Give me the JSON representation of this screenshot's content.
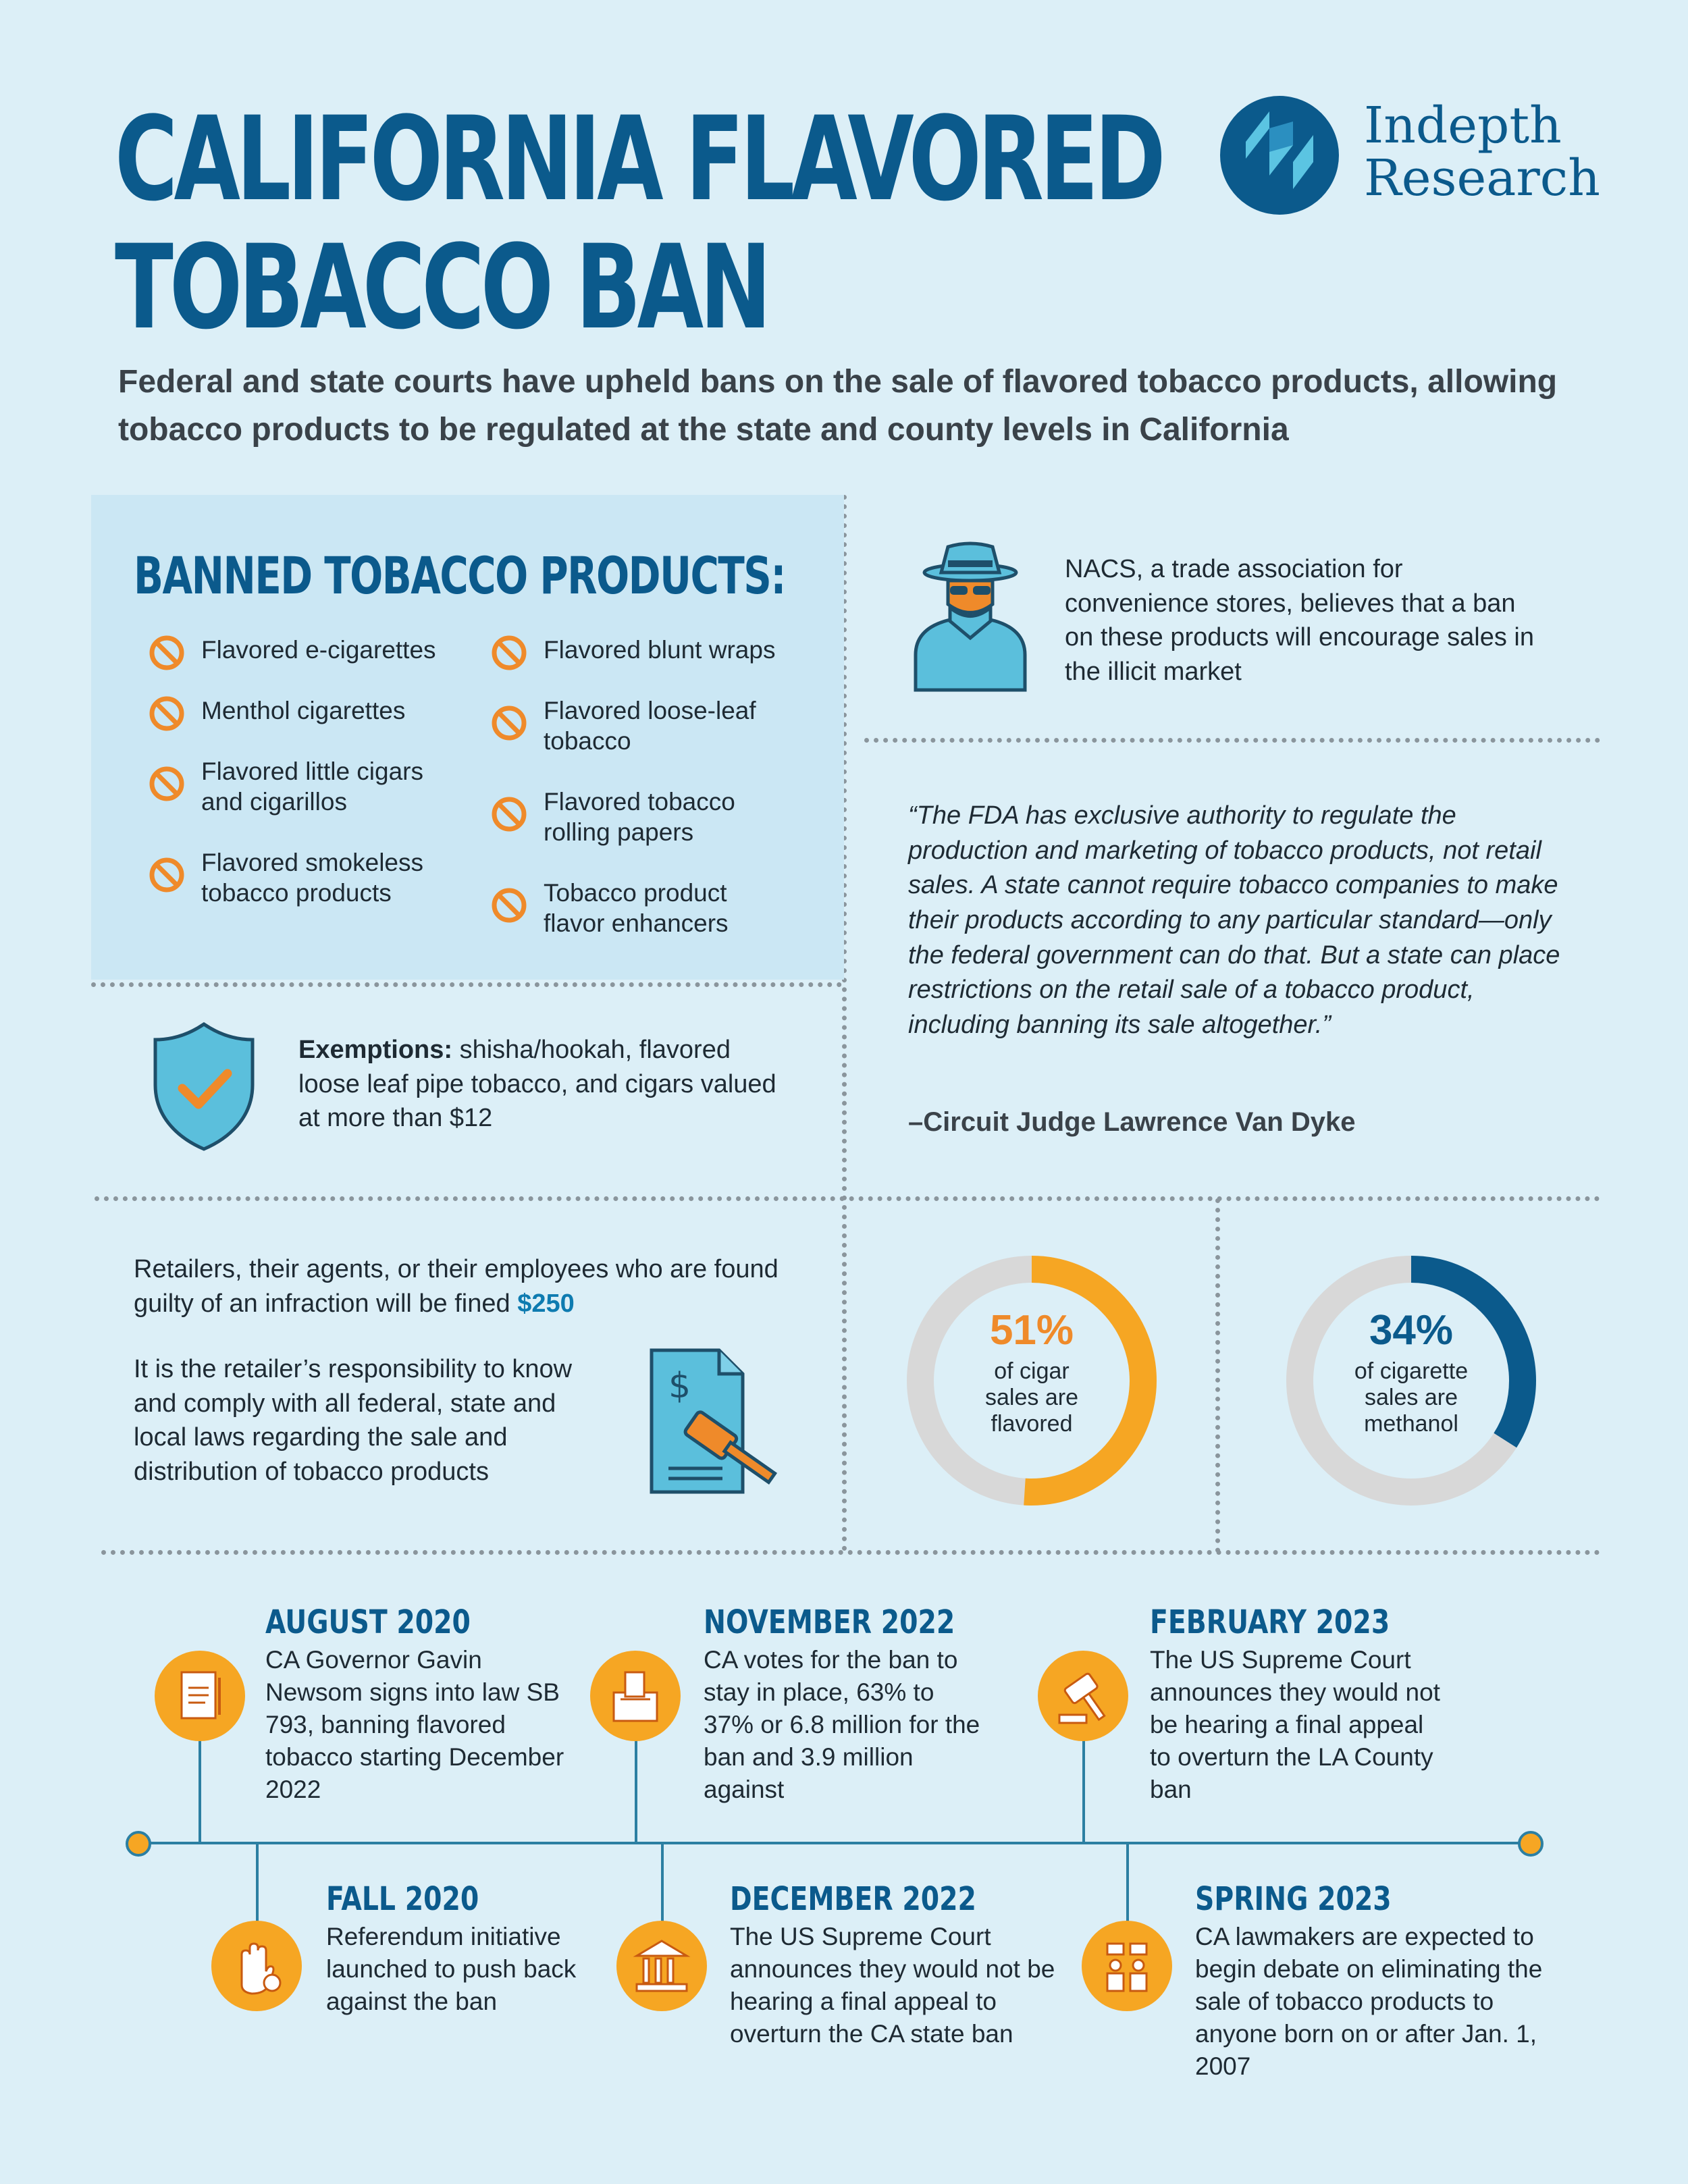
{
  "header": {
    "title_line1": "CALIFORNIA FLAVORED",
    "title_line2": "TOBACCO BAN",
    "subtitle": "Federal and state courts have upheld bans on the sale of flavored tobacco products, allowing tobacco products to be regulated at the state and county levels in California",
    "logo_line1": "Indepth",
    "logo_line2": "Research"
  },
  "banned": {
    "heading": "BANNED TOBACCO PRODUCTS:",
    "left_items": [
      "Flavored e-cigarettes",
      "Menthol cigarettes",
      "Flavored little cigars and cigarillos",
      "Flavored smokeless tobacco products"
    ],
    "right_items": [
      "Flavored blunt wraps",
      "Flavored loose-leaf tobacco",
      "Flavored tobacco rolling papers",
      "Tobacco product flavor enhancers"
    ]
  },
  "exemptions": {
    "label": "Exemptions:",
    "text": " shisha/hookah, flavored loose leaf pipe tobacco, and cigars valued at more than $12"
  },
  "nacs": {
    "text": "NACS, a trade association for convenience stores, believes that a ban on these products will encourage sales in the illicit market"
  },
  "quote": {
    "text": "“The FDA has exclusive authority to regulate the production and marketing of tobacco products, not retail sales. A state cannot require tobacco companies to make their products according to any particular standard—only the federal government can do that. But a state can place restrictions on the retail sale of a tobacco product, including banning its sale altogether.”",
    "attribution": "–Circuit Judge Lawrence Van Dyke"
  },
  "fines": {
    "text": "Retailers, their agents, or their employees who are found guilty of an infraction will be fined ",
    "amount": "$250",
    "responsibility": "It is the retailer’s responsibility to know and comply with all federal, state and local laws regarding the sale and distribution of tobacco products"
  },
  "stats": [
    {
      "percent": "51%",
      "value": 51,
      "caption": "of cigar sales are flavored",
      "color": "#f6a623"
    },
    {
      "percent": "34%",
      "value": 34,
      "caption": "of cigarette sales are methanol",
      "color": "#0b5a8c"
    }
  ],
  "timeline": {
    "top": [
      {
        "date": "AUGUST 2020",
        "text": "CA Governor Gavin Newsom signs into law SB 793, banning flavored tobacco starting December 2022",
        "icon": "document-icon"
      },
      {
        "date": "NOVEMBER 2022",
        "text": "CA votes for the ban to stay in place, 63% to 37% or 6.8 million for the ban and 3.9 million against",
        "icon": "ballot-box-icon"
      },
      {
        "date": "FEBRUARY 2023",
        "text": "The US Supreme Court announces they would not be hearing a final appeal to overturn the LA County ban",
        "icon": "gavel-icon"
      }
    ],
    "bottom": [
      {
        "date": "FALL 2020",
        "text": "Referendum initiative launched to push back against the ban",
        "icon": "stop-hand-icon"
      },
      {
        "date": "DECEMBER 2022",
        "text": "The US Supreme Court announces they would not be hearing a final appeal to overturn the CA state ban",
        "icon": "courthouse-icon"
      },
      {
        "date": "SPRING 2023",
        "text": "CA lawmakers are expected to begin debate on eliminating the sale of tobacco products to anyone born on or after Jan. 1, 2007",
        "icon": "meeting-icon"
      }
    ]
  }
}
